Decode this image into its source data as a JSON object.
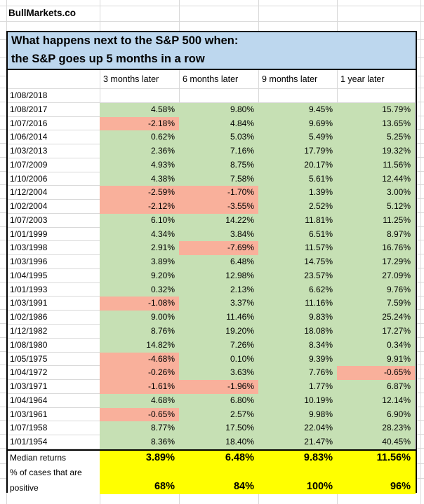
{
  "brand": "BullMarkets.co",
  "title": {
    "line1": "What happens next to the S&P 500 when:",
    "line2": "the S&P goes up 5 months in a row"
  },
  "columns": [
    "3 months later",
    "6 months later",
    "9 months later",
    "1 year later"
  ],
  "rows": [
    {
      "date": "1/08/2018",
      "values": [
        "",
        "",
        "",
        ""
      ]
    },
    {
      "date": "1/08/2017",
      "values": [
        "4.58%",
        "9.80%",
        "9.45%",
        "15.79%"
      ]
    },
    {
      "date": "1/07/2016",
      "values": [
        "-2.18%",
        "4.84%",
        "9.69%",
        "13.65%"
      ]
    },
    {
      "date": "1/06/2014",
      "values": [
        "0.62%",
        "5.03%",
        "5.49%",
        "5.25%"
      ]
    },
    {
      "date": "1/03/2013",
      "values": [
        "2.36%",
        "7.16%",
        "17.79%",
        "19.32%"
      ]
    },
    {
      "date": "1/07/2009",
      "values": [
        "4.93%",
        "8.75%",
        "20.17%",
        "11.56%"
      ]
    },
    {
      "date": "1/10/2006",
      "values": [
        "4.38%",
        "7.58%",
        "5.61%",
        "12.44%"
      ]
    },
    {
      "date": "1/12/2004",
      "values": [
        "-2.59%",
        "-1.70%",
        "1.39%",
        "3.00%"
      ]
    },
    {
      "date": "1/02/2004",
      "values": [
        "-2.12%",
        "-3.55%",
        "2.52%",
        "5.12%"
      ]
    },
    {
      "date": "1/07/2003",
      "values": [
        "6.10%",
        "14.22%",
        "11.81%",
        "11.25%"
      ]
    },
    {
      "date": "1/01/1999",
      "values": [
        "4.34%",
        "3.84%",
        "6.51%",
        "8.97%"
      ]
    },
    {
      "date": "1/03/1998",
      "values": [
        "2.91%",
        "-7.69%",
        "11.57%",
        "16.76%"
      ]
    },
    {
      "date": "1/03/1996",
      "values": [
        "3.89%",
        "6.48%",
        "14.75%",
        "17.29%"
      ]
    },
    {
      "date": "1/04/1995",
      "values": [
        "9.20%",
        "12.98%",
        "23.57%",
        "27.09%"
      ]
    },
    {
      "date": "1/01/1993",
      "values": [
        "0.32%",
        "2.13%",
        "6.62%",
        "9.76%"
      ]
    },
    {
      "date": "1/03/1991",
      "values": [
        "-1.08%",
        "3.37%",
        "11.16%",
        "7.59%"
      ]
    },
    {
      "date": "1/02/1986",
      "values": [
        "9.00%",
        "11.46%",
        "9.83%",
        "25.24%"
      ]
    },
    {
      "date": "1/12/1982",
      "values": [
        "8.76%",
        "19.20%",
        "18.08%",
        "17.27%"
      ]
    },
    {
      "date": "1/08/1980",
      "values": [
        "14.82%",
        "7.26%",
        "8.34%",
        "0.34%"
      ]
    },
    {
      "date": "1/05/1975",
      "values": [
        "-4.68%",
        "0.10%",
        "9.39%",
        "9.91%"
      ]
    },
    {
      "date": "1/04/1972",
      "values": [
        "-0.26%",
        "3.63%",
        "7.76%",
        "-0.65%"
      ]
    },
    {
      "date": "1/03/1971",
      "values": [
        "-1.61%",
        "-1.96%",
        "1.77%",
        "6.87%"
      ]
    },
    {
      "date": "1/04/1964",
      "values": [
        "4.68%",
        "6.80%",
        "10.19%",
        "12.14%"
      ]
    },
    {
      "date": "1/03/1961",
      "values": [
        "-0.65%",
        "2.57%",
        "9.98%",
        "6.90%"
      ]
    },
    {
      "date": "1/07/1958",
      "values": [
        "8.77%",
        "17.50%",
        "22.04%",
        "28.23%"
      ]
    },
    {
      "date": "1/01/1954",
      "values": [
        "8.36%",
        "18.40%",
        "21.47%",
        "40.45%"
      ]
    }
  ],
  "footer": {
    "median_label": "Median returns",
    "median_values": [
      "3.89%",
      "6.48%",
      "9.83%",
      "11.56%"
    ],
    "positive_label_line1": "% of cases that are",
    "positive_label_line2": "positive",
    "positive_values": [
      "68%",
      "84%",
      "100%",
      "96%"
    ]
  },
  "colors": {
    "title_bg": "#bdd7ee",
    "positive_cell": "#c6e0b4",
    "negative_cell": "#f9b09b",
    "footer_bg": "#ffff00",
    "gridline": "#d9d9d9",
    "border": "#000000"
  }
}
